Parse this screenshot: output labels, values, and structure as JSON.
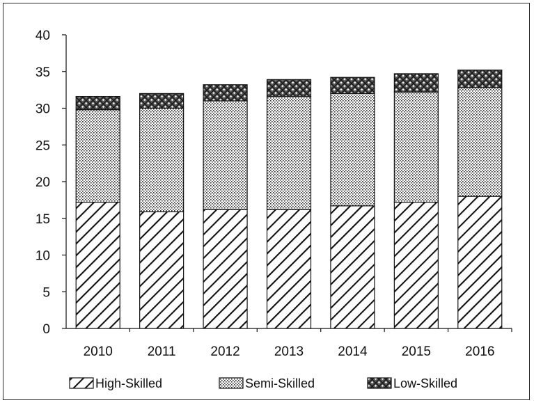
{
  "chart_data": {
    "type": "bar",
    "stacked": true,
    "categories": [
      "2010",
      "2011",
      "2012",
      "2013",
      "2014",
      "2015",
      "2016"
    ],
    "series": [
      {
        "name": "High-Skilled",
        "pattern": "diagonal-hatch",
        "values": [
          17.2,
          15.9,
          16.2,
          16.2,
          16.7,
          17.2,
          18.0
        ]
      },
      {
        "name": "Semi-Skilled",
        "pattern": "dotted",
        "values": [
          12.6,
          14.1,
          14.8,
          15.4,
          15.3,
          15.0,
          14.8
        ]
      },
      {
        "name": "Low-Skilled",
        "pattern": "crosshatch",
        "values": [
          1.8,
          2.0,
          2.2,
          2.3,
          2.2,
          2.5,
          2.4
        ]
      }
    ],
    "ylim": [
      0,
      40
    ],
    "yticks": [
      "0",
      "5",
      "10",
      "15",
      "20",
      "25",
      "30",
      "35",
      "40"
    ],
    "title": "",
    "xlabel": "",
    "ylabel": "",
    "grid": false,
    "legend_position": "bottom"
  },
  "colors": {
    "stroke": "#111111",
    "fill": "#ffffff"
  }
}
